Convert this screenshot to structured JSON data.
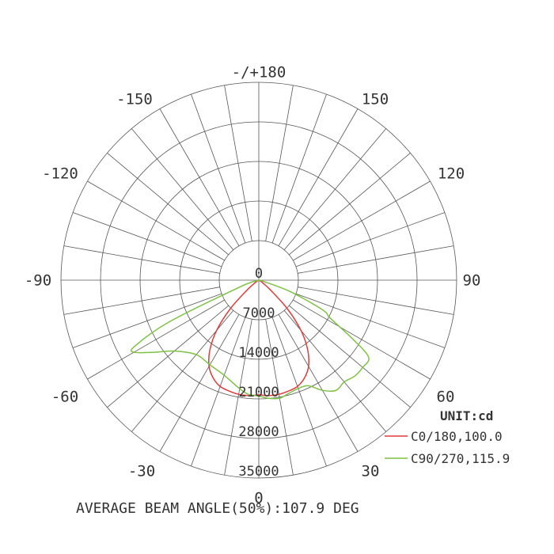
{
  "chart_data": {
    "type": "polar",
    "subtype": "luminous-intensity-distribution",
    "unit_label": "UNIT:cd",
    "footer": "AVERAGE BEAM ANGLE(50%):107.9 DEG",
    "center_label": "0",
    "angle_labels": [
      {
        "angle": 180,
        "text": "-/+180"
      },
      {
        "angle": 150,
        "text": "150"
      },
      {
        "angle": -150,
        "text": "-150"
      },
      {
        "angle": 120,
        "text": "120"
      },
      {
        "angle": -120,
        "text": "-120"
      },
      {
        "angle": 90,
        "text": "90"
      },
      {
        "angle": -90,
        "text": "-90"
      },
      {
        "angle": 60,
        "text": "60"
      },
      {
        "angle": -60,
        "text": "-60"
      },
      {
        "angle": 30,
        "text": "30"
      },
      {
        "angle": -30,
        "text": "-30"
      },
      {
        "angle": 0,
        "text": "0"
      }
    ],
    "radial_ticks": [
      {
        "value": 7000,
        "text": "7000"
      },
      {
        "value": 14000,
        "text": "14000"
      },
      {
        "value": 21000,
        "text": "21000"
      },
      {
        "value": 28000,
        "text": "28000"
      },
      {
        "value": 35000,
        "text": "35000"
      }
    ],
    "rlim": [
      0,
      35000
    ],
    "angular_grid_step_deg": 10,
    "series": [
      {
        "name": "C0/180,100.0",
        "color": "#e03c3c",
        "points": [
          [
            -90,
            0
          ],
          [
            -80,
            40
          ],
          [
            -70,
            130
          ],
          [
            -60,
            400
          ],
          [
            -55,
            900
          ],
          [
            -50,
            2600
          ],
          [
            -45,
            7100
          ],
          [
            -40,
            11600
          ],
          [
            -35,
            15100
          ],
          [
            -30,
            17600
          ],
          [
            -25,
            19100
          ],
          [
            -20,
            20000
          ],
          [
            -15,
            20300
          ],
          [
            -10,
            20500
          ],
          [
            -5,
            20500
          ],
          [
            0,
            20300
          ],
          [
            5,
            20500
          ],
          [
            10,
            20500
          ],
          [
            15,
            20300
          ],
          [
            20,
            20000
          ],
          [
            25,
            19100
          ],
          [
            30,
            17600
          ],
          [
            35,
            15100
          ],
          [
            40,
            11600
          ],
          [
            45,
            7100
          ],
          [
            50,
            2600
          ],
          [
            55,
            900
          ],
          [
            60,
            400
          ],
          [
            70,
            130
          ],
          [
            80,
            40
          ],
          [
            90,
            0
          ]
        ]
      },
      {
        "name": "C90/270,115.9",
        "color": "#7dc242",
        "points": [
          [
            -90,
            0
          ],
          [
            -80,
            120
          ],
          [
            -75,
            280
          ],
          [
            -70,
            3700
          ],
          [
            -65,
            17600
          ],
          [
            -62,
            24800
          ],
          [
            -60,
            25500
          ],
          [
            -55,
            22200
          ],
          [
            -50,
            19500
          ],
          [
            -40,
            17200
          ],
          [
            -30,
            17300
          ],
          [
            -20,
            17900
          ],
          [
            -10,
            19500
          ],
          [
            -5,
            20300
          ],
          [
            0,
            20500
          ],
          [
            5,
            21000
          ],
          [
            10,
            21200
          ],
          [
            15,
            20700
          ],
          [
            20,
            20400
          ],
          [
            25,
            20600
          ],
          [
            30,
            22500
          ],
          [
            35,
            23800
          ],
          [
            40,
            23500
          ],
          [
            45,
            24000
          ],
          [
            50,
            24000
          ],
          [
            55,
            23700
          ],
          [
            58,
            19500
          ],
          [
            62,
            14300
          ],
          [
            65,
            12500
          ],
          [
            70,
            6000
          ],
          [
            75,
            900
          ],
          [
            80,
            130
          ],
          [
            90,
            0
          ]
        ]
      }
    ]
  }
}
